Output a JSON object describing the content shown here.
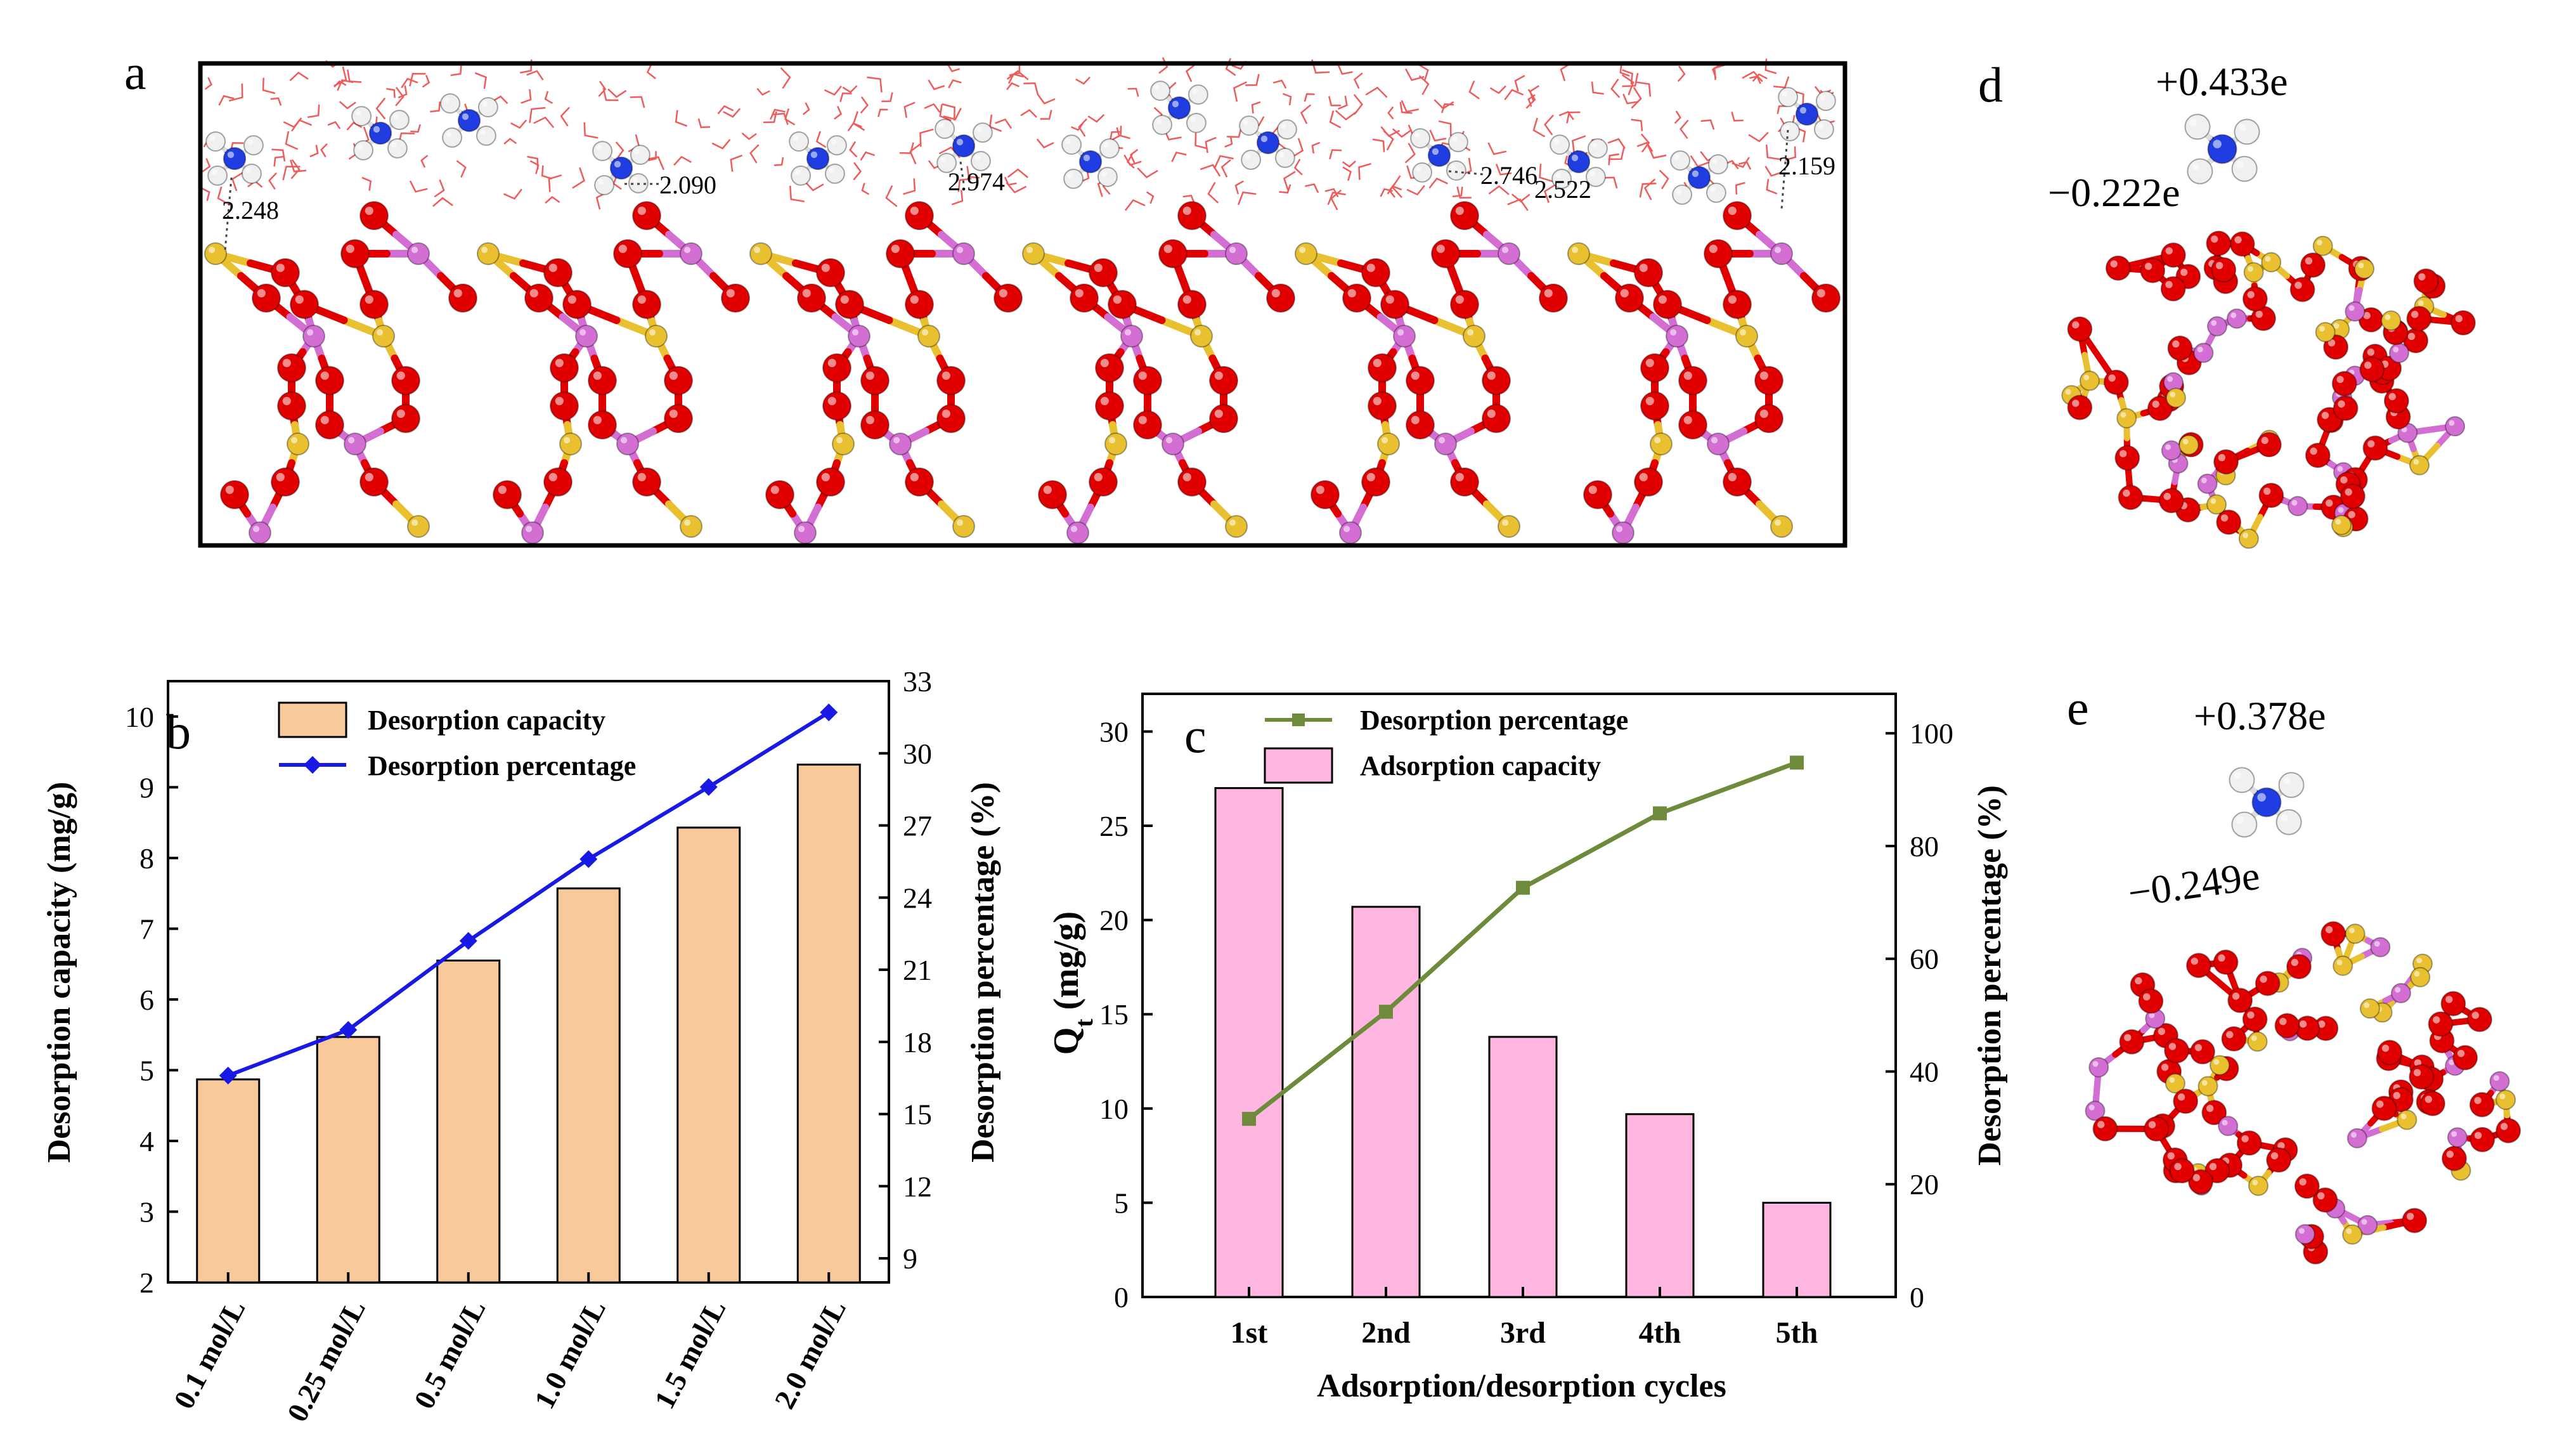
{
  "panels": {
    "a": {
      "letter": "a",
      "distance_labels": [
        "2.248",
        "2.090",
        "2.974",
        "2.746",
        "2.522",
        "2.159"
      ]
    },
    "d": {
      "letter": "d",
      "charge_cation": "+0.433e",
      "charge_framework": "−0.222e"
    },
    "e": {
      "letter": "e",
      "charge_cation": "+0.378e",
      "charge_framework": "−0.249e"
    }
  },
  "colors": {
    "O": "#e00000",
    "Si": "#e8c030",
    "Al": "#d36ed3",
    "N": "#1f3de0",
    "H": "#f0f0f0",
    "water": "#ef5a5a",
    "bar_b": "#f8c99b",
    "line_b": "#1919e6",
    "bar_c": "#ffb6e0",
    "line_c": "#6d8b3a"
  },
  "chart_data": [
    {
      "panel": "b",
      "letter": "b",
      "type": "bar",
      "categories": [
        "0.1 mol/L",
        "0.25 mol/L",
        "0.5 mol/L",
        "1.0 mol/L",
        "1.5 mol/L",
        "2.0 mol/L"
      ],
      "series": [
        {
          "name": "Desorption capacity",
          "kind": "bar",
          "axis": "left",
          "values": [
            4.87,
            5.47,
            6.55,
            7.57,
            8.43,
            9.32
          ]
        },
        {
          "name": "Desorption percentage",
          "kind": "line",
          "axis": "right",
          "values": [
            16.6,
            18.5,
            22.2,
            25.6,
            28.6,
            31.7
          ]
        }
      ],
      "ylabel": "Desorption capacity (mg/g)",
      "y2label": "Desorption percentage (%)",
      "ylim": [
        2,
        10.5
      ],
      "y2lim": [
        8,
        33
      ],
      "yticks": [
        "2",
        "3",
        "4",
        "5",
        "6",
        "7",
        "8",
        "9",
        "10"
      ],
      "y2ticks": [
        "9",
        "12",
        "15",
        "18",
        "21",
        "24",
        "27",
        "30",
        "33"
      ],
      "legend": [
        "Desorption capacity",
        "Desorption percentage"
      ],
      "legend_position": "top-left"
    },
    {
      "panel": "c",
      "letter": "c",
      "type": "bar",
      "categories": [
        "1st",
        "2nd",
        "3rd",
        "4th",
        "5th"
      ],
      "series": [
        {
          "name": "Adsorption capacity",
          "kind": "bar",
          "axis": "left",
          "values": [
            27.0,
            20.7,
            13.8,
            9.7,
            5.0
          ]
        },
        {
          "name": "Desorption percentage",
          "kind": "line",
          "axis": "right",
          "values": [
            31.6,
            50.6,
            72.6,
            85.8,
            94.8
          ]
        }
      ],
      "xlabel": "Adsorption/desorption cycles",
      "ylabel_main": "Q",
      "ylabel_sub": "t",
      "ylabel_unit": " (mg/g)",
      "y2label": "Desorption percentage (%)",
      "ylim": [
        0,
        32
      ],
      "y2lim": [
        0,
        107
      ],
      "yticks": [
        "0",
        "5",
        "10",
        "15",
        "20",
        "25",
        "30"
      ],
      "y2ticks": [
        "0",
        "20",
        "40",
        "60",
        "80",
        "100"
      ],
      "legend": [
        "Desorption percentage",
        "Adsorption capacity"
      ],
      "legend_position": "top-left"
    }
  ]
}
